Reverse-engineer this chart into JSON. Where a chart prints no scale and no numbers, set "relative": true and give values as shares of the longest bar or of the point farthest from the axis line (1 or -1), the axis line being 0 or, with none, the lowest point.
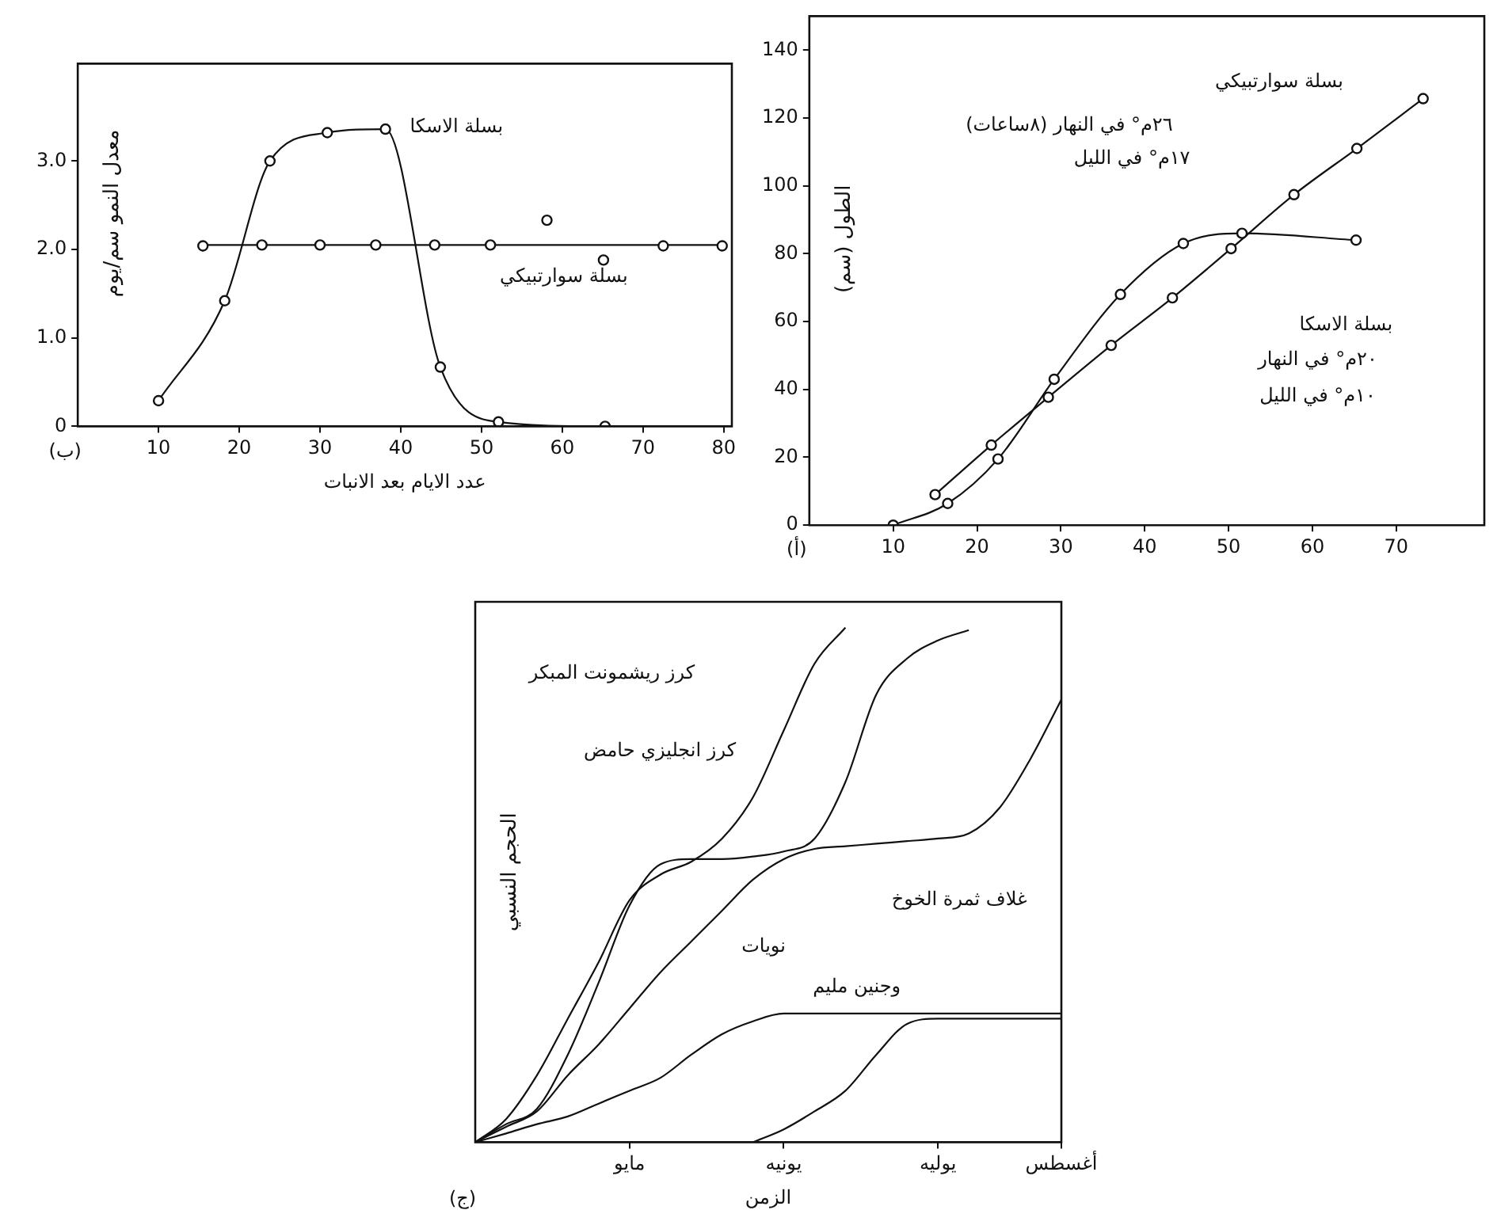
{
  "chart_data": [
    {
      "type": "line",
      "xlabel": "عدد الايام بعد الانبات",
      "ylabel": "معدل النمو سم/يوم",
      "xlim": [
        0,
        81
      ],
      "ylim": [
        0,
        4.1
      ],
      "xticks": [
        10,
        20,
        30,
        40,
        50,
        60,
        70,
        80
      ],
      "yticks": [
        {
          "value": 0,
          "label": "0"
        },
        {
          "value": 1,
          "label": "1.0"
        },
        {
          "value": 2,
          "label": "2.0"
        },
        {
          "value": 3,
          "label": "3.0"
        }
      ],
      "grid": false,
      "legend": false,
      "marker": "circle",
      "series": [
        {
          "type": "line",
          "color": "#111111",
          "x": [
            10,
            18.2,
            23.8,
            30.9,
            38.1,
            44.9,
            52.1,
            65.3
          ],
          "values": [
            0.29,
            1.42,
            3.0,
            3.32,
            3.36,
            0.67,
            0.05,
            0
          ]
        },
        {
          "type": "scatter",
          "color": "#111111",
          "x": [
            15.5,
            22.8,
            30,
            36.9,
            44.2,
            51.1,
            58.1,
            65.1,
            72.5,
            79.8
          ],
          "values": [
            2.04,
            2.05,
            2.05,
            2.05,
            2.05,
            2.05,
            2.33,
            1.88,
            2.04,
            2.04
          ]
        },
        {
          "type": "line",
          "color": "#111111",
          "marker": "none",
          "x": [
            15.5,
            79.8
          ],
          "values": [
            2.05,
            2.05
          ]
        }
      ],
      "annotations": [
        "(ب)",
        "بسلة الاسكا",
        "بسلة سوارتبيكي"
      ]
    },
    {
      "type": "line",
      "ylabel": "الطول (سم)",
      "xlim": [
        0,
        80.5
      ],
      "ylim": [
        0,
        150
      ],
      "xticks": [
        10,
        20,
        30,
        40,
        50,
        60,
        70
      ],
      "yticks": [
        0,
        20,
        40,
        60,
        80,
        100,
        120,
        140
      ],
      "grid": false,
      "legend": false,
      "marker": "circle",
      "series": [
        {
          "type": "line",
          "color": "#111111",
          "x": [
            10,
            16.5,
            22.5,
            29.2,
            37.1,
            44.6,
            51.6,
            65.2
          ],
          "values": [
            0,
            6.4,
            19.5,
            43,
            68,
            83,
            86,
            84
          ]
        },
        {
          "type": "line",
          "color": "#111111",
          "x": [
            15,
            21.7,
            28.5,
            36,
            43.3,
            50.3,
            57.8,
            65.3,
            73.2
          ],
          "values": [
            9,
            23.6,
            37.7,
            53,
            67,
            81.5,
            97.4,
            111,
            125.7
          ]
        }
      ],
      "annotations": [
        "(أ)",
        "بسلة سوارتبيكي",
        "٢٦م° في النهار (٨ساعات)",
        "١٧م° في الليل",
        "بسلة الاسكا",
        "٢٠م° في النهار",
        "١٠م° في الليل"
      ]
    },
    {
      "type": "line",
      "relative": true,
      "xlabel": "الزمن",
      "ylabel": "الحجم النسبي",
      "categories": [
        null,
        null,
        null,
        null,
        null,
        "مايو",
        null,
        null,
        null,
        null,
        "يونيه",
        null,
        null,
        null,
        null,
        "يوليه",
        null,
        null,
        null,
        "أغسطس"
      ],
      "tick_labels": "x",
      "grid": false,
      "legend": false,
      "marker": "none",
      "series": [
        {
          "type": "line",
          "color": "#111111",
          "values": [
            0,
            0.045,
            0.13,
            0.24,
            0.35,
            0.47,
            0.52,
            0.545,
            0.59,
            0.67,
            0.8,
            0.93,
            1.0,
            null,
            null,
            null,
            null,
            null,
            null,
            null
          ]
        },
        {
          "type": "line",
          "color": "#111111",
          "values": [
            0,
            0.035,
            0.065,
            0.17,
            0.31,
            0.46,
            0.54,
            0.55,
            0.55,
            0.555,
            0.565,
            0.59,
            0.7,
            0.87,
            0.94,
            0.975,
            0.995,
            null,
            null,
            null
          ]
        },
        {
          "type": "line",
          "color": "#111111",
          "values": [
            0,
            0.03,
            0.06,
            0.13,
            0.19,
            0.26,
            0.33,
            0.39,
            0.45,
            0.51,
            0.55,
            0.57,
            0.575,
            0.58,
            0.585,
            0.59,
            0.6,
            0.65,
            0.745,
            0.86
          ]
        },
        {
          "type": "line",
          "color": "#111111",
          "values": [
            0,
            0.017,
            0.035,
            0.05,
            0.075,
            0.1,
            0.125,
            0.17,
            0.21,
            0.235,
            0.25,
            0.25,
            0.25,
            0.25,
            0.25,
            0.25,
            0.25,
            0.25,
            0.25,
            0.25
          ]
        },
        {
          "type": "line",
          "color": "#111111",
          "values": [
            null,
            null,
            null,
            null,
            null,
            null,
            null,
            null,
            null,
            0,
            0.025,
            0.06,
            0.1,
            0.17,
            0.23,
            0.24,
            0.24,
            0.24,
            0.24,
            0.24
          ]
        }
      ],
      "annotations": [
        "(ج)",
        "كرز ريشمونت المبكر",
        "كرز انجليزي حامض",
        "غلاف ثمرة الخوخ",
        "نويات",
        "وجنين مليم"
      ]
    }
  ]
}
